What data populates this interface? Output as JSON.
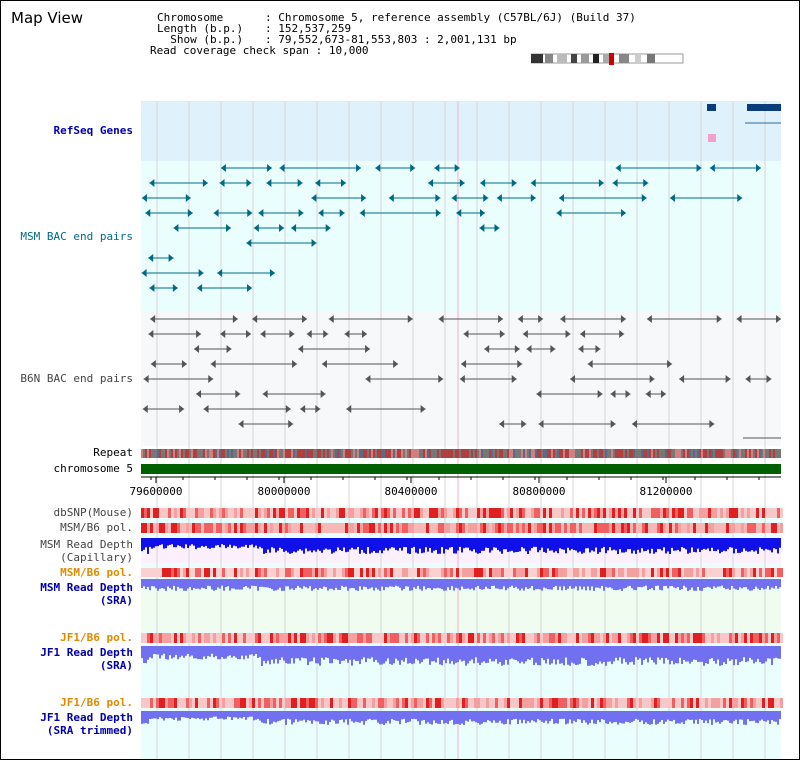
{
  "title": "Map View",
  "info": {
    "chromosome": {
      "key": "Chromosome",
      "value": ": Chromosome 5, reference assembly (C57BL/6J) (Build 37)"
    },
    "length": {
      "key": "Length (b.p.)",
      "value": ": 152,537,259"
    },
    "show": {
      "key": "  Show (b.p.)",
      "value": ": 79,552,673-81,553,803 : 2,001,131 bp"
    },
    "coverage": {
      "key": "Read coverage check span",
      "value": ": 10,000"
    }
  },
  "tracks": {
    "refseq": "RefSeq Genes",
    "msm_bac": "MSM BAC end pairs",
    "b6n_bac": "B6N BAC end pairs",
    "repeat": "Repeat",
    "chromosome": "chromosome 5",
    "dbsnp": "dbSNP(Mouse)",
    "msm_b6_pol": "MSM/B6 pol.",
    "msm_depth_cap": "MSM Read Depth\n(Capillary)",
    "msm_b6_pol2": "MSM/B6 pol.",
    "msm_depth_sra": "MSM Read Depth\n(SRA)",
    "jf1_b6_pol": "JF1/B6 pol.",
    "jf1_depth_sra": "JF1 Read Depth\n(SRA)",
    "jf1_b6_pol2": "JF1/B6 pol.",
    "jf1_depth_trim": "JF1 Read Depth\n(SRA trimmed)"
  },
  "axis": {
    "ticks": [
      "79600000",
      "80000000",
      "80400000",
      "80800000",
      "81200000"
    ]
  },
  "colors": {
    "refseq_bg": "#dff2fb",
    "teal_bg": "#eafefe",
    "gray_bg": "#f6f8fa",
    "msm_feature": "#006a84",
    "b6n_feature": "#555555",
    "chromosome_bar": "#006000",
    "depth_blue": "#1010e8",
    "depth_light": "#7070f0",
    "pol_red": "#e00000"
  }
}
